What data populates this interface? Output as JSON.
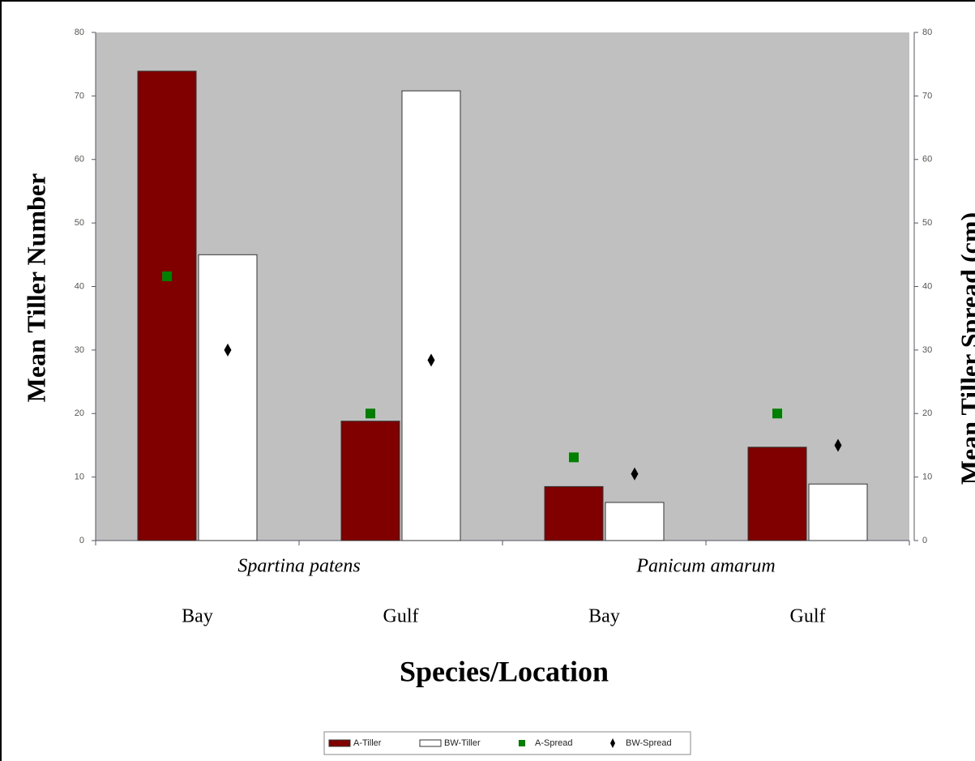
{
  "chart_data": {
    "type": "bar",
    "x_label": "Species/Location",
    "y_label": "Mean Tiller Number",
    "y2_label": "Mean Tiller Spread (cm)",
    "species": [
      "Spartina patens",
      "Panicum amarum"
    ],
    "categories": [
      "Bay",
      "Gulf",
      "Bay",
      "Gulf"
    ],
    "series": [
      {
        "name": "A-Tiller",
        "kind": "bar",
        "color": "#800000",
        "values": [
          73.9,
          18.8,
          8.5,
          14.7
        ]
      },
      {
        "name": "BW-Tiller",
        "kind": "bar",
        "color": "#ffffff",
        "values": [
          45.0,
          70.8,
          6.0,
          8.9
        ]
      },
      {
        "name": "A-Spread",
        "kind": "square",
        "color": "#008000",
        "axis": "y2",
        "values": [
          41.6,
          20.0,
          13.1,
          20.0
        ]
      },
      {
        "name": "BW-Spread",
        "kind": "diamond",
        "color": "#000000",
        "axis": "y2",
        "values": [
          30.0,
          28.4,
          10.5,
          15.0
        ]
      }
    ],
    "ylim": [
      0,
      80
    ],
    "yticks": [
      0,
      10,
      20,
      30,
      40,
      50,
      60,
      70,
      80
    ],
    "y2lim": [
      0,
      80
    ],
    "y2ticks": [
      0,
      10,
      20,
      30,
      40,
      50,
      60,
      70,
      80
    ],
    "plot_background": "#c0c0c0"
  }
}
